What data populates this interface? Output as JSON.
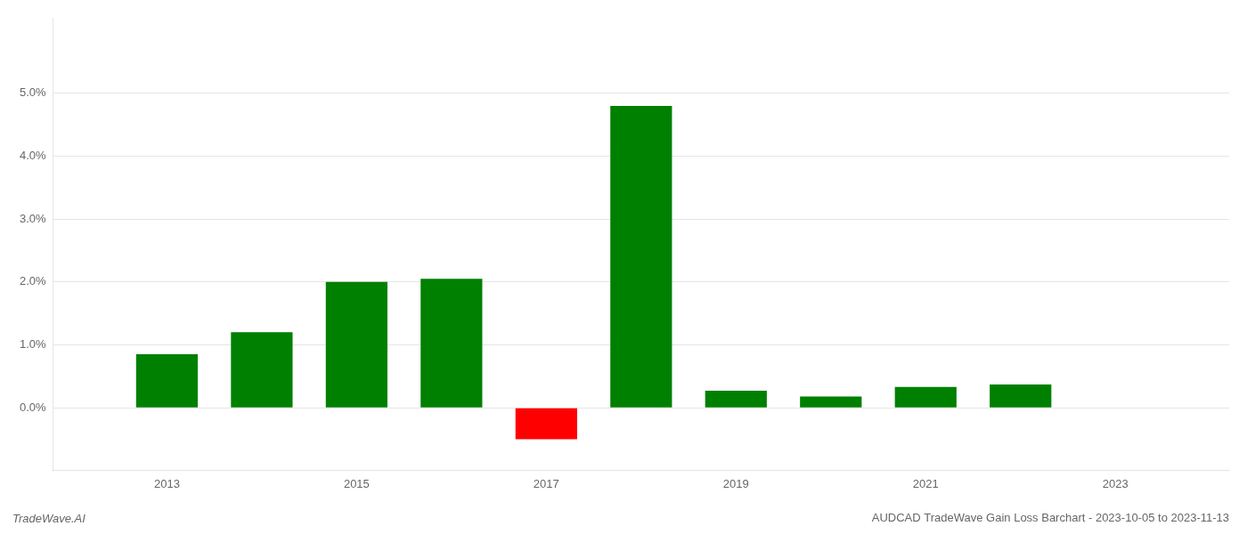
{
  "chart_data": {
    "type": "bar",
    "title": "AUDCAD TradeWave Gain Loss Barchart - 2023-10-05 to 2023-11-13",
    "annotations": [
      "TradeWave.AI"
    ],
    "x": [
      2013,
      2014,
      2015,
      2016,
      2017,
      2018,
      2019,
      2020,
      2021,
      2022
    ],
    "values": [
      0.0085,
      0.012,
      0.02,
      0.0205,
      -0.005,
      0.048,
      0.0027,
      0.0018,
      0.0033,
      0.0037
    ],
    "colors": [
      "#008000",
      "#008000",
      "#008000",
      "#008000",
      "#ff0000",
      "#008000",
      "#008000",
      "#008000",
      "#008000",
      "#008000"
    ],
    "xlim": [
      2011.8,
      2024.2
    ],
    "xticks": [
      2013,
      2015,
      2017,
      2019,
      2021,
      2023
    ],
    "ylim": [
      -0.01,
      0.062
    ],
    "yticks": [
      {
        "value": 0.0,
        "label": "0.0%"
      },
      {
        "value": 0.01,
        "label": "1.0%"
      },
      {
        "value": 0.02,
        "label": "2.0%"
      },
      {
        "value": 0.03,
        "label": "3.0%"
      },
      {
        "value": 0.04,
        "label": "4.0%"
      },
      {
        "value": 0.05,
        "label": "5.0%"
      }
    ],
    "grid": "y"
  }
}
